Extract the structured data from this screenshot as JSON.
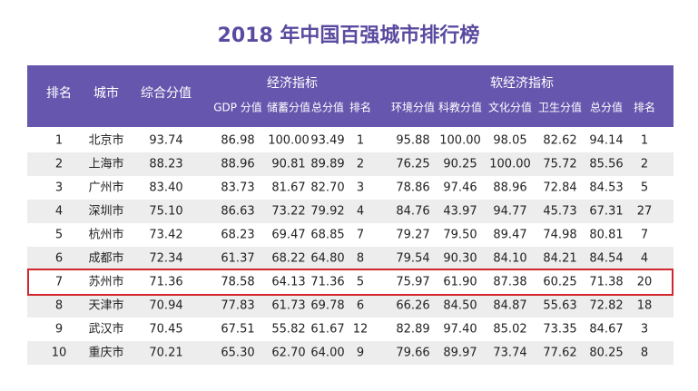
{
  "title": "2018 年中国百强城市排行榜",
  "header": {
    "rank": "排名",
    "city": "城市",
    "composite": "综合分值",
    "economic": {
      "title": "经济指标",
      "columns": [
        "GDP 分值",
        "储蓄分值",
        "总分值",
        "排名"
      ]
    },
    "soft": {
      "title": "软经济指标",
      "columns": [
        "环境分值",
        "科教分值",
        "文化分值",
        "卫生分值",
        "总分值",
        "排名"
      ]
    }
  },
  "rows": [
    [
      "1",
      "北京市",
      "93.74",
      "86.98",
      "100.00",
      "93.49",
      "1",
      "95.88",
      "100.00",
      "98.05",
      "82.62",
      "94.14",
      "1"
    ],
    [
      "2",
      "上海市",
      "88.23",
      "88.96",
      "90.81",
      "89.89",
      "2",
      "76.25",
      "90.25",
      "100.00",
      "75.72",
      "85.56",
      "2"
    ],
    [
      "3",
      "广州市",
      "83.40",
      "83.73",
      "81.67",
      "82.70",
      "3",
      "78.86",
      "97.46",
      "88.96",
      "72.84",
      "84.53",
      "5"
    ],
    [
      "4",
      "深圳市",
      "75.10",
      "86.63",
      "73.22",
      "79.92",
      "4",
      "84.76",
      "43.97",
      "94.77",
      "45.73",
      "67.31",
      "27"
    ],
    [
      "5",
      "杭州市",
      "73.42",
      "68.23",
      "69.47",
      "68.85",
      "7",
      "79.27",
      "79.50",
      "89.47",
      "74.98",
      "80.81",
      "7"
    ],
    [
      "6",
      "成都市",
      "72.34",
      "61.37",
      "68.22",
      "64.80",
      "8",
      "79.54",
      "90.30",
      "84.10",
      "84.21",
      "84.54",
      "4"
    ],
    [
      "7",
      "苏州市",
      "71.36",
      "78.58",
      "64.13",
      "71.36",
      "5",
      "75.97",
      "61.90",
      "87.38",
      "60.25",
      "71.38",
      "20"
    ],
    [
      "8",
      "天津市",
      "70.94",
      "77.83",
      "61.73",
      "69.78",
      "6",
      "66.26",
      "84.50",
      "84.87",
      "55.63",
      "72.82",
      "18"
    ],
    [
      "9",
      "武汉市",
      "70.45",
      "67.51",
      "55.82",
      "61.67",
      "12",
      "82.89",
      "97.40",
      "85.02",
      "73.35",
      "84.67",
      "3"
    ],
    [
      "10",
      "重庆市",
      "70.21",
      "65.30",
      "62.70",
      "64.00",
      "9",
      "79.66",
      "89.97",
      "73.74",
      "77.62",
      "80.25",
      "8"
    ]
  ]
}
